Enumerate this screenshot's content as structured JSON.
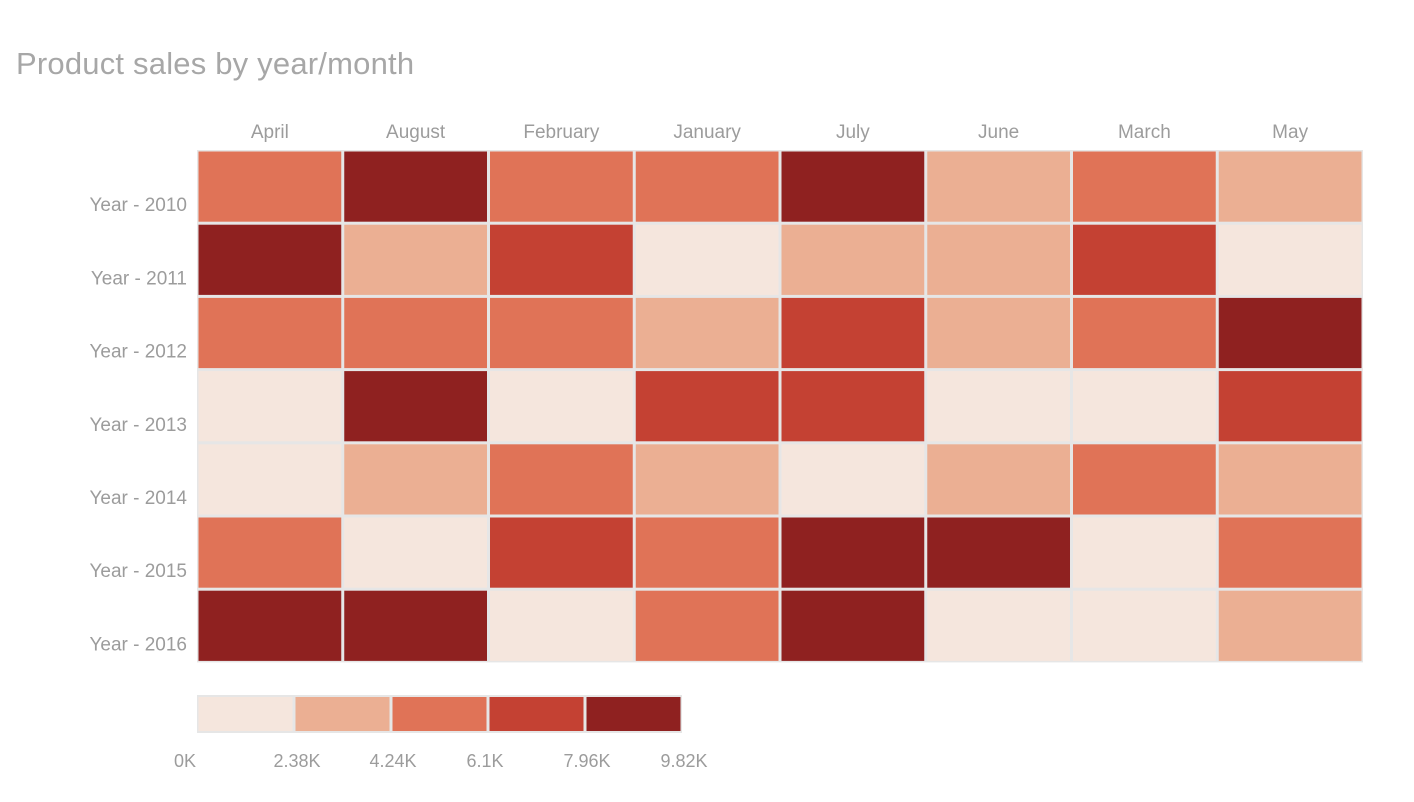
{
  "chart_data": {
    "type": "heatmap",
    "title": "Product sales by year/month",
    "columns": [
      "April",
      "August",
      "February",
      "January",
      "July",
      "June",
      "March",
      "May"
    ],
    "rows": [
      "Year - 2010",
      "Year - 2011",
      "Year - 2012",
      "Year - 2013",
      "Year - 2014",
      "Year - 2015",
      "Year - 2016"
    ],
    "values": [
      [
        5.2,
        9.3,
        5.2,
        5.2,
        9.3,
        3.3,
        5.2,
        3.3
      ],
      [
        9.3,
        3.3,
        7.0,
        1.2,
        3.3,
        3.3,
        7.0,
        1.2
      ],
      [
        5.2,
        5.2,
        5.2,
        3.3,
        7.0,
        3.3,
        5.2,
        9.3
      ],
      [
        1.2,
        9.3,
        1.2,
        7.0,
        7.0,
        1.2,
        1.2,
        7.0
      ],
      [
        1.2,
        3.3,
        5.2,
        3.3,
        1.2,
        3.3,
        5.2,
        3.3
      ],
      [
        5.2,
        1.2,
        7.0,
        5.2,
        9.3,
        9.3,
        1.2,
        5.2
      ],
      [
        9.3,
        9.3,
        1.2,
        5.2,
        9.3,
        1.2,
        1.2,
        3.3
      ]
    ],
    "value_unit": "K",
    "legend": {
      "placement": "bottom-left",
      "ticks": [
        "0K",
        "2.38K",
        "4.24K",
        "6.1K",
        "7.96K",
        "9.82K"
      ],
      "breaks": [
        0,
        2.38,
        4.24,
        6.1,
        7.96,
        9.82
      ],
      "colors": [
        "#f5e6dd",
        "#ebaf93",
        "#e07357",
        "#c44133",
        "#8f2120"
      ]
    },
    "grid": false
  }
}
